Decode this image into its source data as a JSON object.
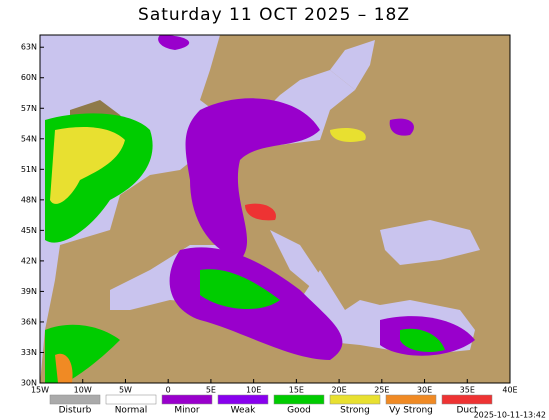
{
  "title": "Saturday 11 OCT 2025 – 18Z",
  "lat_labels": [
    "63N",
    "60N",
    "57N",
    "54N",
    "51N",
    "48N",
    "45N",
    "42N",
    "39N",
    "36N",
    "33N",
    "30N"
  ],
  "lon_labels": [
    "15W",
    "10W",
    "5W",
    "0",
    "5E",
    "10E",
    "15E",
    "20E",
    "25E",
    "30E",
    "35E",
    "40E"
  ],
  "legend": [
    {
      "name": "Disturb",
      "color": "#aaaaaa"
    },
    {
      "name": "Normal",
      "color": "#ffffff"
    },
    {
      "name": "Minor",
      "color": "#9900cc"
    },
    {
      "name": "Weak",
      "color": "#8800ee"
    },
    {
      "name": "Good",
      "color": "#00cc00"
    },
    {
      "name": "Strong",
      "color": "#e8e030"
    },
    {
      "name": "Vy Strong",
      "color": "#f08a24"
    },
    {
      "name": "Duct",
      "color": "#ee3333"
    }
  ],
  "timestamp": "2025-10-11-13:42"
}
